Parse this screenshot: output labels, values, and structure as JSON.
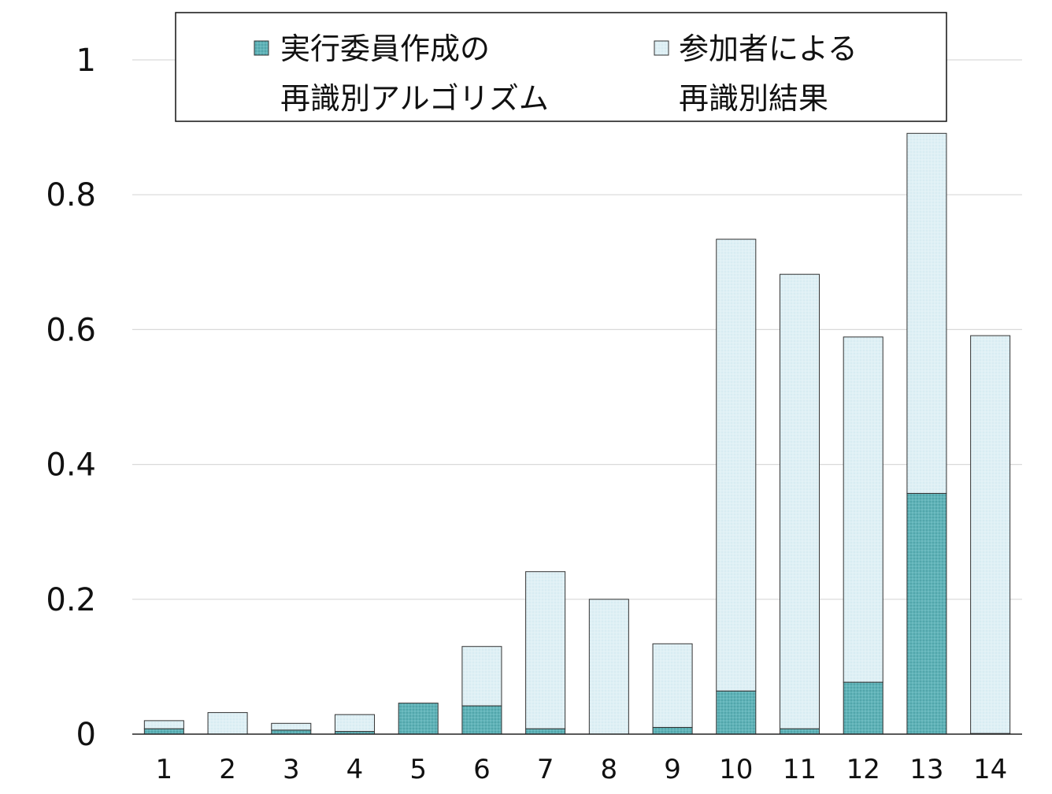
{
  "chart_data": {
    "type": "bar",
    "stacked": true,
    "categories": [
      "1",
      "2",
      "3",
      "4",
      "5",
      "6",
      "7",
      "8",
      "9",
      "10",
      "11",
      "12",
      "13",
      "14"
    ],
    "series": [
      {
        "name": "実行委員作成の再識別アルゴリズム",
        "legend_lines": [
          "実行委員作成の",
          "再識別アルゴリズム"
        ],
        "color": "#5fb3b8",
        "values": [
          0.008,
          0.0,
          0.006,
          0.004,
          0.046,
          0.042,
          0.008,
          0.0,
          0.01,
          0.064,
          0.008,
          0.077,
          0.357,
          0.001
        ]
      },
      {
        "name": "参加者による再識別結果",
        "legend_lines": [
          "参加者による",
          "再識別結果"
        ],
        "color": "#dff0f5",
        "values": [
          0.012,
          0.032,
          0.01,
          0.025,
          0.0,
          0.088,
          0.233,
          0.2,
          0.124,
          0.67,
          0.674,
          0.512,
          0.534,
          0.59
        ]
      }
    ],
    "ylim": [
      0,
      1
    ],
    "yticks": [
      0,
      0.2,
      0.4,
      0.6,
      0.8,
      1
    ],
    "ytick_labels": [
      "0",
      "0.2",
      "0.4",
      "0.6",
      "0.8",
      "1"
    ],
    "grid": true,
    "legend_position": "top-center",
    "title": "",
    "xlabel": "",
    "ylabel": ""
  }
}
